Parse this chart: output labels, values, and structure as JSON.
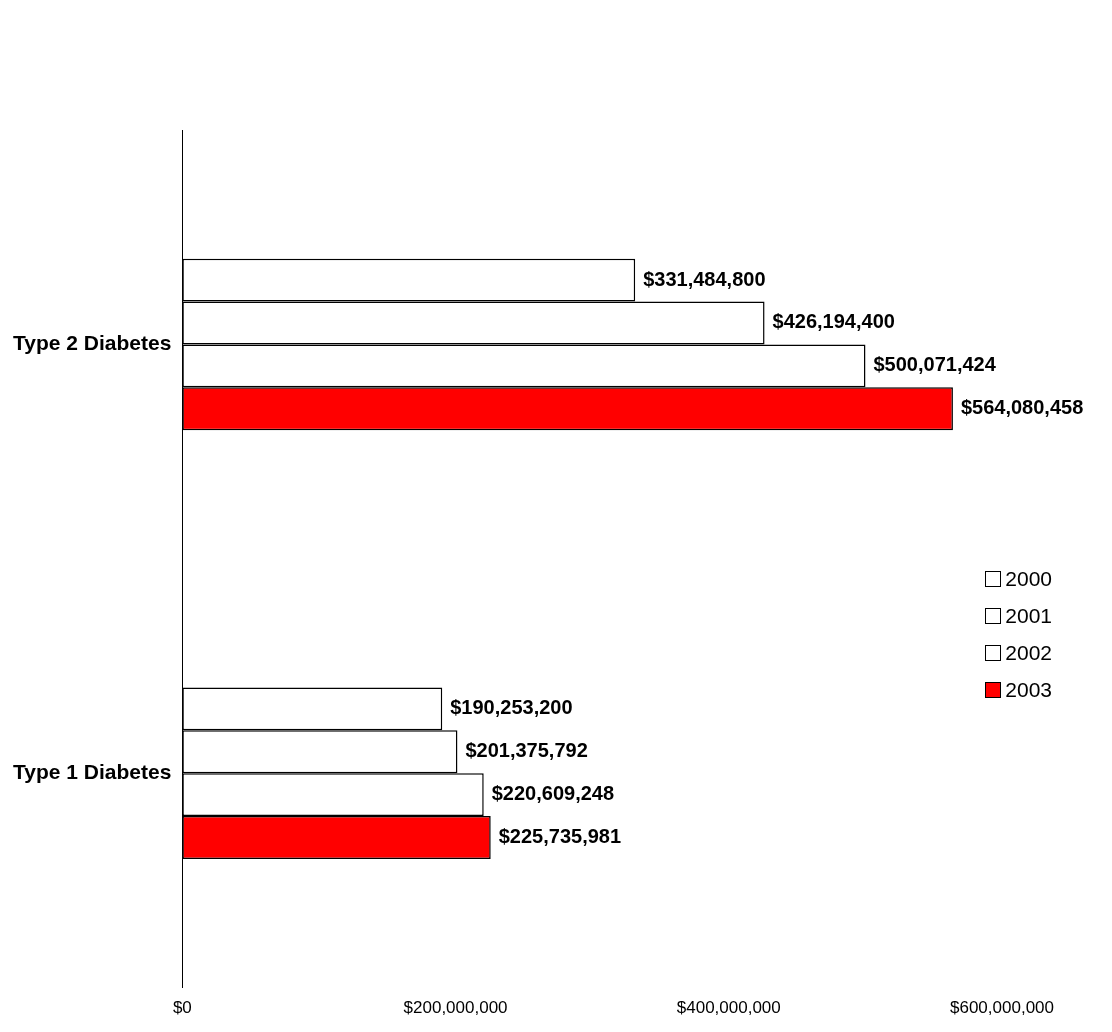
{
  "chart_data": {
    "type": "bar",
    "orientation": "horizontal",
    "categories": [
      "Type 2 Diabetes",
      "Type 1 Diabetes"
    ],
    "series": [
      {
        "name": "2000",
        "color": "#ffffff",
        "values": [
          331484800,
          190253200
        ],
        "value_labels": [
          "$331,484,800",
          "$190,253,200"
        ]
      },
      {
        "name": "2001",
        "color": "#ffffff",
        "values": [
          426194400,
          201375792
        ],
        "value_labels": [
          "$426,194,400",
          "$201,375,792"
        ]
      },
      {
        "name": "2002",
        "color": "#ffffff",
        "values": [
          500071424,
          220609248
        ],
        "value_labels": [
          "$500,071,424",
          "$220,609,248"
        ]
      },
      {
        "name": "2003",
        "color": "#ff0000",
        "values": [
          564080458,
          225735981
        ],
        "value_labels": [
          "$564,080,458",
          "$225,735,981"
        ]
      }
    ],
    "xlim": [
      0,
      600000000
    ],
    "xticks": [
      {
        "value": 0,
        "label": "$0"
      },
      {
        "value": 200000000,
        "label": "$200,000,000"
      },
      {
        "value": 400000000,
        "label": "$400,000,000"
      },
      {
        "value": 600000000,
        "label": "$600,000,000"
      }
    ],
    "grid": false,
    "legend": "right"
  }
}
